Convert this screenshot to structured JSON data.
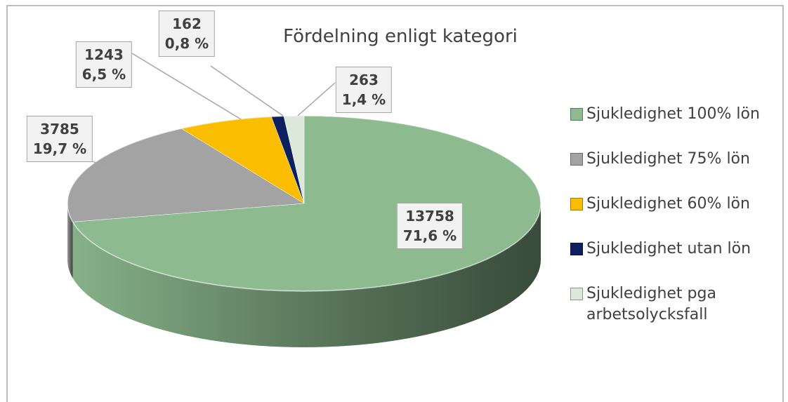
{
  "chart_data": {
    "type": "pie",
    "title": "Fördelning enligt kategori",
    "categories": [
      "Sjukledighet 100% lön",
      "Sjukledighet 75% lön",
      "Sjukledighet 60% lön",
      "Sjukledighet utan lön",
      "Sjukledighet pga arbetsolycksfall"
    ],
    "values": [
      13758,
      3785,
      1243,
      162,
      263
    ],
    "percent_labels": [
      "71,6 %",
      "19,7 %",
      "6,5 %",
      "0,8 %",
      "1,4 %"
    ],
    "colors": [
      "#8dba8f",
      "#a3a3a3",
      "#fbbd00",
      "#0c1f5e",
      "#dbe8da"
    ],
    "legend": "right"
  }
}
